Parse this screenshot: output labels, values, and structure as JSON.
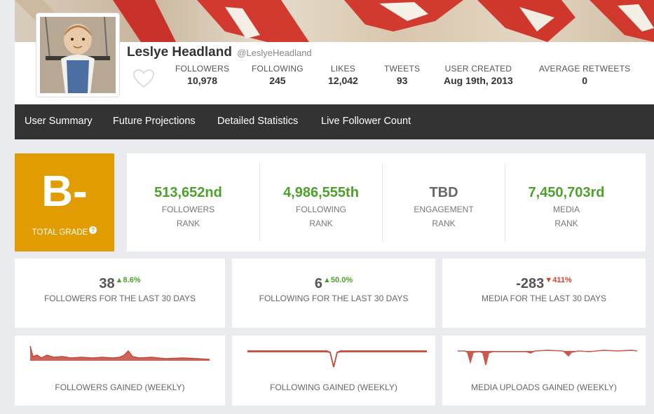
{
  "profile": {
    "name": "Leslye Headland",
    "handle": "@LeslyeHeadland",
    "stats": [
      {
        "label": "FOLLOWERS",
        "value": "10,978"
      },
      {
        "label": "FOLLOWING",
        "value": "245"
      },
      {
        "label": "LIKES",
        "value": "12,042"
      },
      {
        "label": "TWEETS",
        "value": "93"
      },
      {
        "label": "USER CREATED",
        "value": "Aug 19th, 2013"
      },
      {
        "label": "AVERAGE RETWEETS",
        "value": "0"
      }
    ]
  },
  "nav": {
    "items": [
      "User Summary",
      "Future Projections",
      "Detailed Statistics",
      "Live Follower Count"
    ]
  },
  "grade": {
    "letter": "B-",
    "label": "TOTAL GRADE",
    "help_glyph": "?"
  },
  "ranks": [
    {
      "value": "513,652nd",
      "label": "FOLLOWERS",
      "sub": "RANK"
    },
    {
      "value": "4,986,555th",
      "label": "FOLLOWING",
      "sub": "RANK"
    },
    {
      "value": "TBD",
      "label": "ENGAGEMENT",
      "sub": "RANK"
    },
    {
      "value": "7,450,703rd",
      "label": "MEDIA",
      "sub": "RANK"
    }
  ],
  "period_cards": [
    {
      "value": "38",
      "change": "8.6%",
      "direction": "up",
      "label": "FOLLOWERS FOR THE LAST 30 DAYS"
    },
    {
      "value": "6",
      "change": "50.0%",
      "direction": "up",
      "label": "FOLLOWING FOR THE LAST 30 DAYS"
    },
    {
      "value": "-283",
      "change": "411%",
      "direction": "down",
      "label": "MEDIA FOR THE LAST 30 DAYS"
    }
  ],
  "sparklines": [
    {
      "label": "FOLLOWERS GAINED (WEEKLY)"
    },
    {
      "label": "FOLLOWING GAINED (WEEKLY)"
    },
    {
      "label": "MEDIA UPLOADS GAINED (WEEKLY)"
    }
  ],
  "colors": {
    "grade_bg": "#e09c00",
    "rank_green": "#4ca12b",
    "down_red": "#d0432b",
    "spark_line": "#c6493a",
    "nav_bg": "#333333"
  }
}
